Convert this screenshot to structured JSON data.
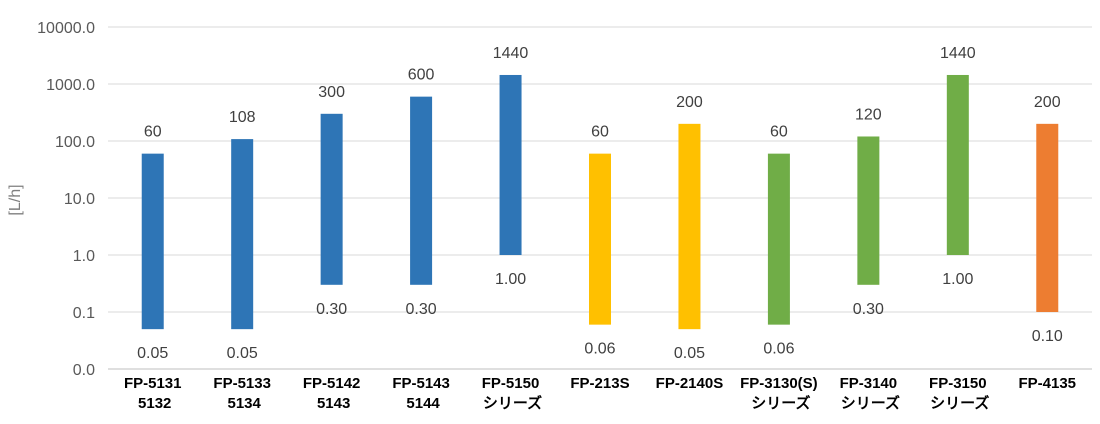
{
  "chart_data": {
    "type": "bar",
    "subtype": "floating-range",
    "y_scale": "log",
    "ylabel": "[L/h]",
    "y_ticks": [
      "0.0",
      "0.1",
      "1.0",
      "10.0",
      "100.0",
      "1000.0",
      "10000.0"
    ],
    "grid": true,
    "categories": [
      {
        "line1": "FP-5131",
        "line2": "5132",
        "min": 0.05,
        "max": 60,
        "min_label": "0.05",
        "max_label": "60",
        "color": "#2e75b6"
      },
      {
        "line1": "FP-5133",
        "line2": "5134",
        "min": 0.05,
        "max": 108,
        "min_label": "0.05",
        "max_label": "108",
        "color": "#2e75b6"
      },
      {
        "line1": "FP-5142",
        "line2": "5143",
        "min": 0.3,
        "max": 300,
        "min_label": "0.30",
        "max_label": "300",
        "color": "#2e75b6"
      },
      {
        "line1": "FP-5143",
        "line2": "5144",
        "min": 0.3,
        "max": 600,
        "min_label": "0.30",
        "max_label": "600",
        "color": "#2e75b6"
      },
      {
        "line1": "FP-5150",
        "line2": "シリーズ",
        "min": 1.0,
        "max": 1440,
        "min_label": "1.00",
        "max_label": "1440",
        "color": "#2e75b6"
      },
      {
        "line1": "FP-213S",
        "line2": "",
        "min": 0.06,
        "max": 60,
        "min_label": "0.06",
        "max_label": "60",
        "color": "#ffc000"
      },
      {
        "line1": "FP-2140S",
        "line2": "",
        "min": 0.05,
        "max": 200,
        "min_label": "0.05",
        "max_label": "200",
        "color": "#ffc000"
      },
      {
        "line1": "FP-3130(S)",
        "line2": "シリーズ",
        "min": 0.06,
        "max": 60,
        "min_label": "0.06",
        "max_label": "60",
        "color": "#70ad47"
      },
      {
        "line1": "FP-3140",
        "line2": "シリーズ",
        "min": 0.3,
        "max": 120,
        "min_label": "0.30",
        "max_label": "120",
        "color": "#70ad47"
      },
      {
        "line1": "FP-3150",
        "line2": "シリーズ",
        "min": 1.0,
        "max": 1440,
        "min_label": "1.00",
        "max_label": "1440",
        "color": "#70ad47"
      },
      {
        "line1": "FP-4135",
        "line2": "",
        "min": 0.1,
        "max": 200,
        "min_label": "0.10",
        "max_label": "200",
        "color": "#ed7d31"
      }
    ]
  }
}
